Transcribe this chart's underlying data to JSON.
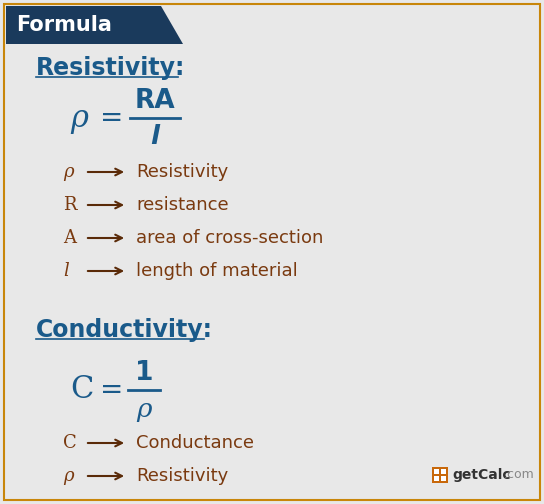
{
  "bg_color": "#e8e8e8",
  "header_bg": "#1a3a5c",
  "header_text": "Formula",
  "header_text_color": "#ffffff",
  "border_color": "#c8860a",
  "blue_color": "#1a5a8a",
  "brown_color": "#7a3a10",
  "dark_brown": "#5a2a08",
  "resistivity_label": "Resistivity:",
  "conductivity_label": "Conductivity:",
  "res_formula_num": "RA",
  "res_formula_den": "l",
  "cond_formula_num": "1",
  "cond_formula_den": "ρ",
  "res_items": [
    [
      "ρ",
      "Resistivity"
    ],
    [
      "R",
      "resistance"
    ],
    [
      "A",
      "area of cross-section"
    ],
    [
      "l",
      "length of material"
    ]
  ],
  "cond_items": [
    [
      "C",
      "Conductance"
    ],
    [
      "ρ",
      "Resistivity"
    ]
  ]
}
